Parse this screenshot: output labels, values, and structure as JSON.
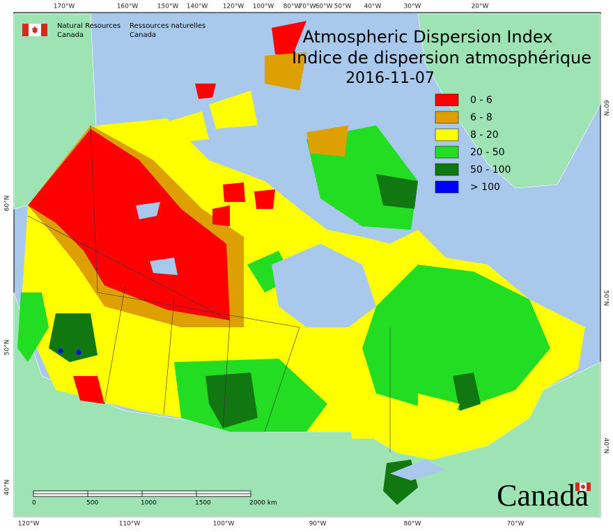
{
  "agency": {
    "english": [
      "Natural Resources",
      "Canada"
    ],
    "french": [
      "Ressources naturelles",
      "Canada"
    ]
  },
  "title": {
    "lines": [
      "Atmospheric Dispersion Index",
      "Indice de dispersion atmosphérique"
    ],
    "date": "2016-11-07"
  },
  "legend": [
    {
      "label": "0 - 6",
      "color": "#ff0000"
    },
    {
      "label": "6 - 8",
      "color": "#dda000"
    },
    {
      "label": "8 - 20",
      "color": "#ffff00"
    },
    {
      "label": "20 - 50",
      "color": "#22dd22"
    },
    {
      "label": "50 - 100",
      "color": "#117711"
    },
    {
      "label": "> 100",
      "color": "#0000ff"
    }
  ],
  "graticule": {
    "top": [
      "170°W",
      "160°W",
      "150°W",
      "140°W",
      "120°W",
      "100°W",
      "80°W",
      "70°W",
      "60°W",
      "50°W",
      "40°W",
      "30°W",
      "20°W"
    ],
    "bottom": [
      "120°W",
      "110°W",
      "100°W",
      "90°W",
      "80°W",
      "70°W"
    ],
    "left": [
      "60°N",
      "50°N",
      "40°N"
    ],
    "right": [
      "60°N",
      "50°N",
      "40°N"
    ]
  },
  "scale_bar": {
    "labels": [
      "0",
      "500",
      "1000",
      "1500",
      "2000  km"
    ]
  },
  "wordmark": "Canada"
}
